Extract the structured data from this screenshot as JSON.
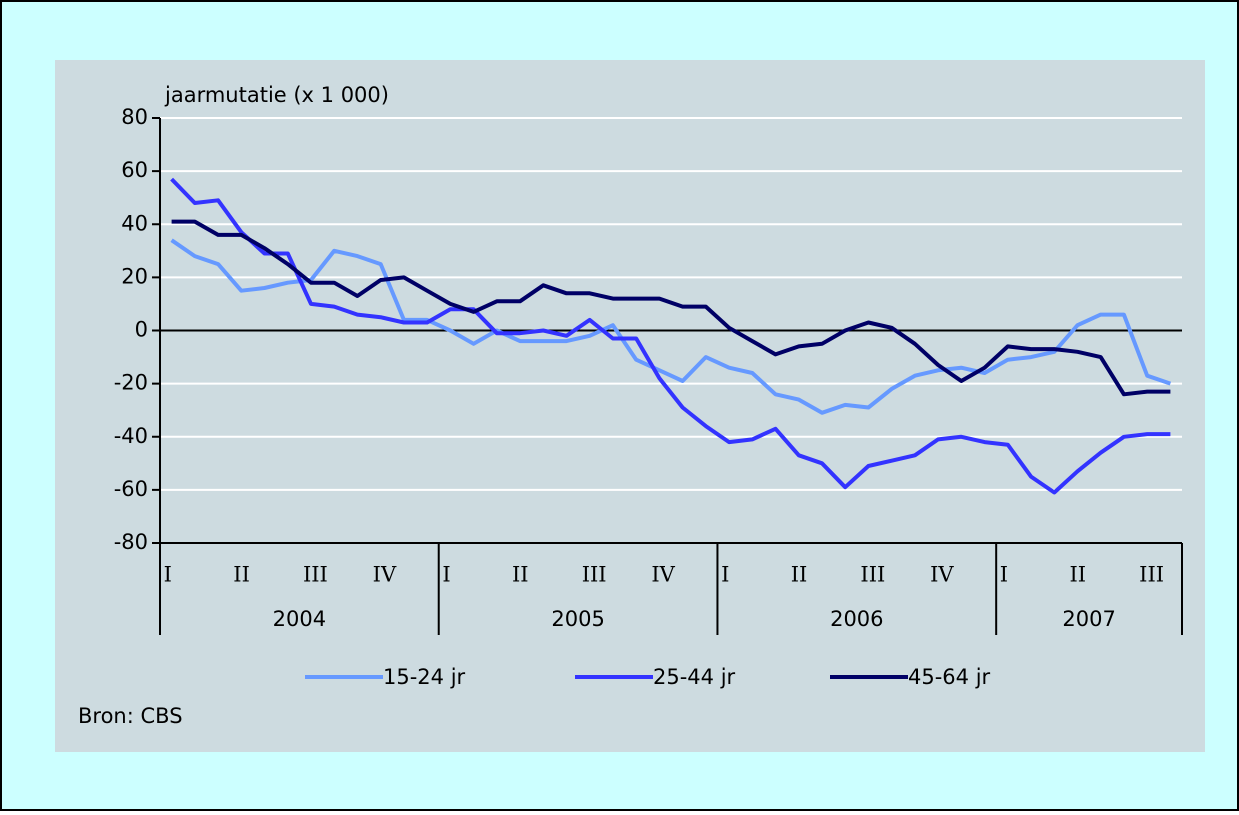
{
  "chart_data": {
    "type": "line",
    "y_axis_label": "jaarmutatie (x 1 000)",
    "source": "Bron: CBS",
    "categories": [
      "I",
      null,
      null,
      "II",
      null,
      null,
      "III",
      null,
      null,
      "IV",
      null,
      null,
      "I",
      null,
      null,
      "II",
      null,
      null,
      "III",
      null,
      null,
      "IV",
      null,
      null,
      "I",
      null,
      null,
      "II",
      null,
      null,
      "III",
      null,
      null,
      "IV",
      null,
      null,
      "I",
      null,
      null,
      "II",
      null,
      null,
      "III",
      null
    ],
    "category_groups": [
      "2004",
      "2005",
      "2006",
      "2007"
    ],
    "series": [
      {
        "name": "15-24 jr",
        "color": "#6699ff",
        "values": [
          34,
          28,
          25,
          15,
          16,
          18,
          19,
          30,
          28,
          25,
          4,
          4,
          0,
          -5,
          0,
          -4,
          -4,
          -4,
          -2,
          2,
          -11,
          -15,
          -19,
          -10,
          -14,
          -16,
          -24,
          -26,
          -31,
          -28,
          -29,
          -22,
          -17,
          -15,
          -14,
          -16,
          -11,
          -10,
          -8,
          2,
          6,
          6,
          -17,
          -20
        ]
      },
      {
        "name": "25-44 jr",
        "color": "#3333ff",
        "values": [
          57,
          48,
          49,
          37,
          29,
          29,
          10,
          9,
          6,
          5,
          3,
          3,
          8,
          8,
          -1,
          -1,
          0,
          -2,
          4,
          -3,
          -3,
          -18,
          -29,
          -36,
          -42,
          -41,
          -37,
          -47,
          -50,
          -59,
          -51,
          -49,
          -47,
          -41,
          -40,
          -42,
          -43,
          -55,
          -61,
          -53,
          -46,
          -40,
          -39,
          -39
        ]
      },
      {
        "name": "45-64 jr",
        "color": "#000066",
        "values": [
          41,
          41,
          36,
          36,
          31,
          25,
          18,
          18,
          13,
          19,
          20,
          15,
          10,
          7,
          11,
          11,
          17,
          14,
          14,
          12,
          12,
          12,
          9,
          9,
          1,
          -4,
          -9,
          -6,
          -5,
          0,
          3,
          1,
          -5,
          -13,
          -19,
          -14,
          -6,
          -7,
          -7,
          -8,
          -10,
          -24,
          -23,
          -23
        ]
      }
    ],
    "ylim": [
      -80,
      80
    ],
    "yticks": [
      -80,
      -60,
      -40,
      -20,
      0,
      20,
      40,
      60,
      80
    ],
    "grid": true,
    "legend": "bottom"
  }
}
